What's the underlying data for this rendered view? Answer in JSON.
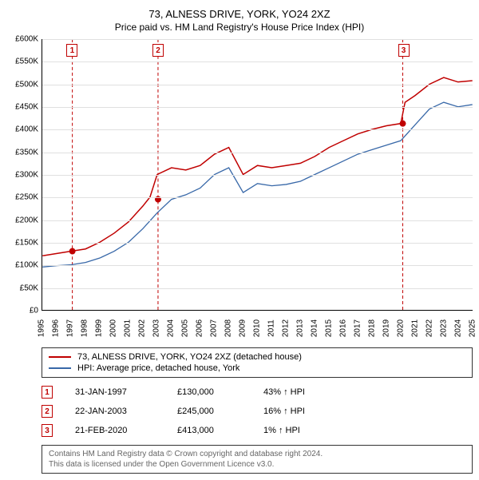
{
  "title": "73, ALNESS DRIVE, YORK, YO24 2XZ",
  "subtitle": "Price paid vs. HM Land Registry's House Price Index (HPI)",
  "chart": {
    "type": "line",
    "background_color": "#ffffff",
    "grid_color": "#e0e0e0",
    "axis_color": "#000000",
    "ylim": [
      0,
      600000
    ],
    "ytick_step": 50000,
    "y_tick_labels": [
      "£0",
      "£50K",
      "£100K",
      "£150K",
      "£200K",
      "£250K",
      "£300K",
      "£350K",
      "£400K",
      "£450K",
      "£500K",
      "£550K",
      "£600K"
    ],
    "y_label_fontsize": 10,
    "xlim": [
      1995,
      2025
    ],
    "xtick_step": 1,
    "x_tick_labels": [
      "1995",
      "1996",
      "1997",
      "1998",
      "1999",
      "2000",
      "2001",
      "2002",
      "2003",
      "2004",
      "2005",
      "2006",
      "2007",
      "2008",
      "2009",
      "2010",
      "2011",
      "2012",
      "2013",
      "2014",
      "2015",
      "2016",
      "2017",
      "2018",
      "2019",
      "2020",
      "2021",
      "2022",
      "2023",
      "2024",
      "2025"
    ],
    "x_label_fontsize": 10,
    "x_label_rotation": -90,
    "series": [
      {
        "name": "property",
        "label": "73, ALNESS DRIVE, YORK, YO24 2XZ (detached house)",
        "color": "#c00000",
        "line_width": 1.5,
        "data": [
          [
            1995,
            120000
          ],
          [
            1996,
            125000
          ],
          [
            1997,
            130000
          ],
          [
            1998,
            135000
          ],
          [
            1999,
            150000
          ],
          [
            2000,
            170000
          ],
          [
            2001,
            195000
          ],
          [
            2002,
            230000
          ],
          [
            2002.5,
            250000
          ],
          [
            2003,
            300000
          ],
          [
            2004,
            315000
          ],
          [
            2005,
            310000
          ],
          [
            2006,
            320000
          ],
          [
            2007,
            345000
          ],
          [
            2008,
            360000
          ],
          [
            2009,
            300000
          ],
          [
            2010,
            320000
          ],
          [
            2011,
            315000
          ],
          [
            2012,
            320000
          ],
          [
            2013,
            325000
          ],
          [
            2014,
            340000
          ],
          [
            2015,
            360000
          ],
          [
            2016,
            375000
          ],
          [
            2017,
            390000
          ],
          [
            2018,
            400000
          ],
          [
            2019,
            408000
          ],
          [
            2020,
            413000
          ],
          [
            2020.3,
            460000
          ],
          [
            2021,
            475000
          ],
          [
            2022,
            500000
          ],
          [
            2023,
            515000
          ],
          [
            2024,
            505000
          ],
          [
            2025,
            508000
          ]
        ]
      },
      {
        "name": "hpi",
        "label": "HPI: Average price, detached house, York",
        "color": "#3868a8",
        "line_width": 1.3,
        "data": [
          [
            1995,
            95000
          ],
          [
            1996,
            98000
          ],
          [
            1997,
            100000
          ],
          [
            1998,
            105000
          ],
          [
            1999,
            115000
          ],
          [
            2000,
            130000
          ],
          [
            2001,
            150000
          ],
          [
            2002,
            180000
          ],
          [
            2003,
            215000
          ],
          [
            2004,
            245000
          ],
          [
            2005,
            255000
          ],
          [
            2006,
            270000
          ],
          [
            2007,
            300000
          ],
          [
            2008,
            315000
          ],
          [
            2009,
            260000
          ],
          [
            2010,
            280000
          ],
          [
            2011,
            275000
          ],
          [
            2012,
            278000
          ],
          [
            2013,
            285000
          ],
          [
            2014,
            300000
          ],
          [
            2015,
            315000
          ],
          [
            2016,
            330000
          ],
          [
            2017,
            345000
          ],
          [
            2018,
            355000
          ],
          [
            2019,
            365000
          ],
          [
            2020,
            375000
          ],
          [
            2021,
            410000
          ],
          [
            2022,
            445000
          ],
          [
            2023,
            460000
          ],
          [
            2024,
            450000
          ],
          [
            2025,
            455000
          ]
        ]
      }
    ],
    "markers": {
      "line_color": "#c00000",
      "line_dash": "4,3",
      "dot_color": "#c00000",
      "dot_radius": 4,
      "number_box_border": "#c00000",
      "number_box_text": "#c00000",
      "items": [
        {
          "n": "1",
          "x": 1997.08,
          "y": 130000
        },
        {
          "n": "2",
          "x": 2003.06,
          "y": 245000
        },
        {
          "n": "3",
          "x": 2020.14,
          "y": 413000
        }
      ]
    }
  },
  "legend": {
    "border_color": "#333333",
    "fontsize": 11,
    "items": [
      {
        "color": "#c00000",
        "label": "73, ALNESS DRIVE, YORK, YO24 2XZ (detached house)"
      },
      {
        "color": "#3868a8",
        "label": "HPI: Average price, detached house, York"
      }
    ]
  },
  "transactions": {
    "fontsize": 11,
    "arrow_up": "↑",
    "hpi_suffix": "HPI",
    "rows": [
      {
        "n": "1",
        "date": "31-JAN-1997",
        "price": "£130,000",
        "delta": "43%"
      },
      {
        "n": "2",
        "date": "22-JAN-2003",
        "price": "£245,000",
        "delta": "16%"
      },
      {
        "n": "3",
        "date": "21-FEB-2020",
        "price": "£413,000",
        "delta": "1%"
      }
    ]
  },
  "footer": {
    "border_color": "#333333",
    "text_color": "#666666",
    "fontsize": 10,
    "line1": "Contains HM Land Registry data © Crown copyright and database right 2024.",
    "line2": "This data is licensed under the Open Government Licence v3.0."
  }
}
